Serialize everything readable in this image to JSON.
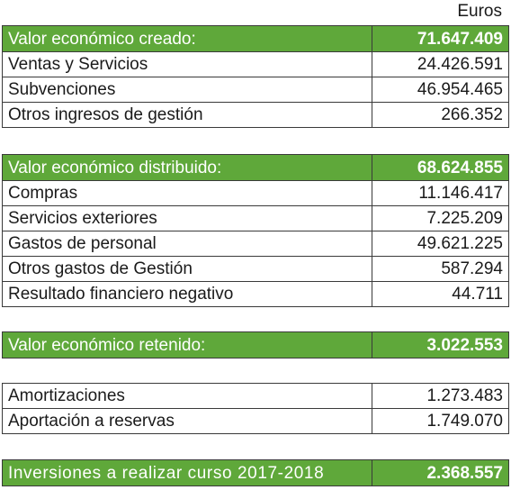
{
  "unit_label": "Euros",
  "sections": [
    {
      "header": {
        "label": "Valor económico creado:",
        "value": "71.647.409"
      },
      "rows": [
        {
          "label": "Ventas y Servicios",
          "value": "24.426.591"
        },
        {
          "label": "Subvenciones",
          "value": "46.954.465"
        },
        {
          "label": "Otros ingresos de gestión",
          "value": "266.352"
        }
      ]
    },
    {
      "header": {
        "label": "Valor económico distribuido:",
        "value": "68.624.855"
      },
      "rows": [
        {
          "label": "Compras",
          "value": "11.146.417"
        },
        {
          "label": "Servicios exteriores",
          "value": "7.225.209"
        },
        {
          "label": "Gastos de personal",
          "value": "49.621.225"
        },
        {
          "label": "Otros gastos de Gestión",
          "value": "587.294"
        },
        {
          "label": "Resultado financiero negativo",
          "value": "44.711"
        }
      ]
    },
    {
      "header": {
        "label": "Valor económico retenido:",
        "value": "3.022.553"
      },
      "rows": []
    },
    {
      "header": null,
      "rows": [
        {
          "label": "Amortizaciones",
          "value": "1.273.483"
        },
        {
          "label": "Aportación a reservas",
          "value": "1.749.070"
        }
      ]
    },
    {
      "header": {
        "label": "Inversiones a realizar curso 2017-2018",
        "value": "2.368.557"
      },
      "rows": []
    }
  ],
  "colors": {
    "header_bg": "#5fa83a",
    "header_text": "#ffffff",
    "border": "#3a3a3a"
  }
}
